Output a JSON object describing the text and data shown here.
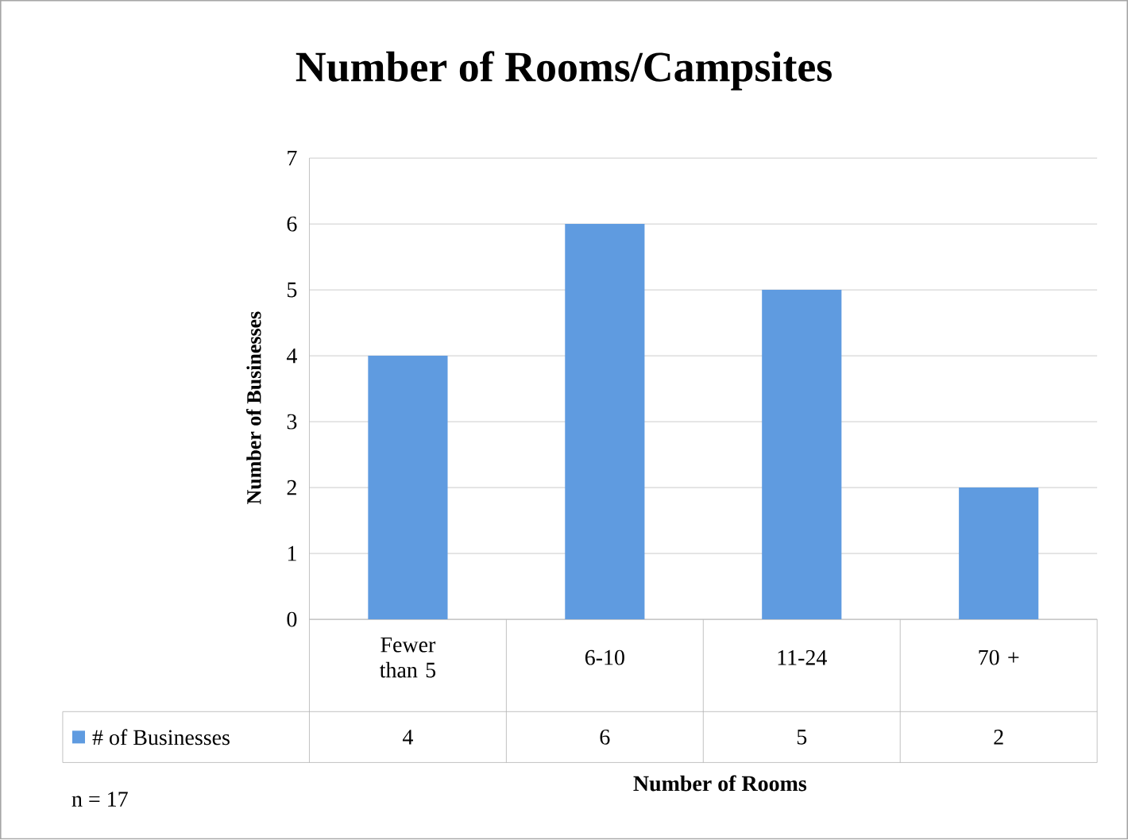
{
  "chart_data": {
    "type": "bar",
    "title": "Number of Rooms/Campsites",
    "xlabel": "Number of Rooms",
    "ylabel": "Number of Businesses",
    "categories": [
      "Fewer than 5",
      "6-10",
      "11-24",
      "70 +"
    ],
    "series": [
      {
        "name": "# of Businesses",
        "color": "#5f9be0",
        "values": [
          4,
          6,
          5,
          2
        ]
      }
    ],
    "ylim": [
      0,
      7
    ],
    "yticks": [
      0,
      1,
      2,
      3,
      4,
      5,
      6,
      7
    ],
    "grid": "y",
    "legend": "bottom",
    "data_labels": true,
    "annotations": [
      "n = 17"
    ]
  }
}
